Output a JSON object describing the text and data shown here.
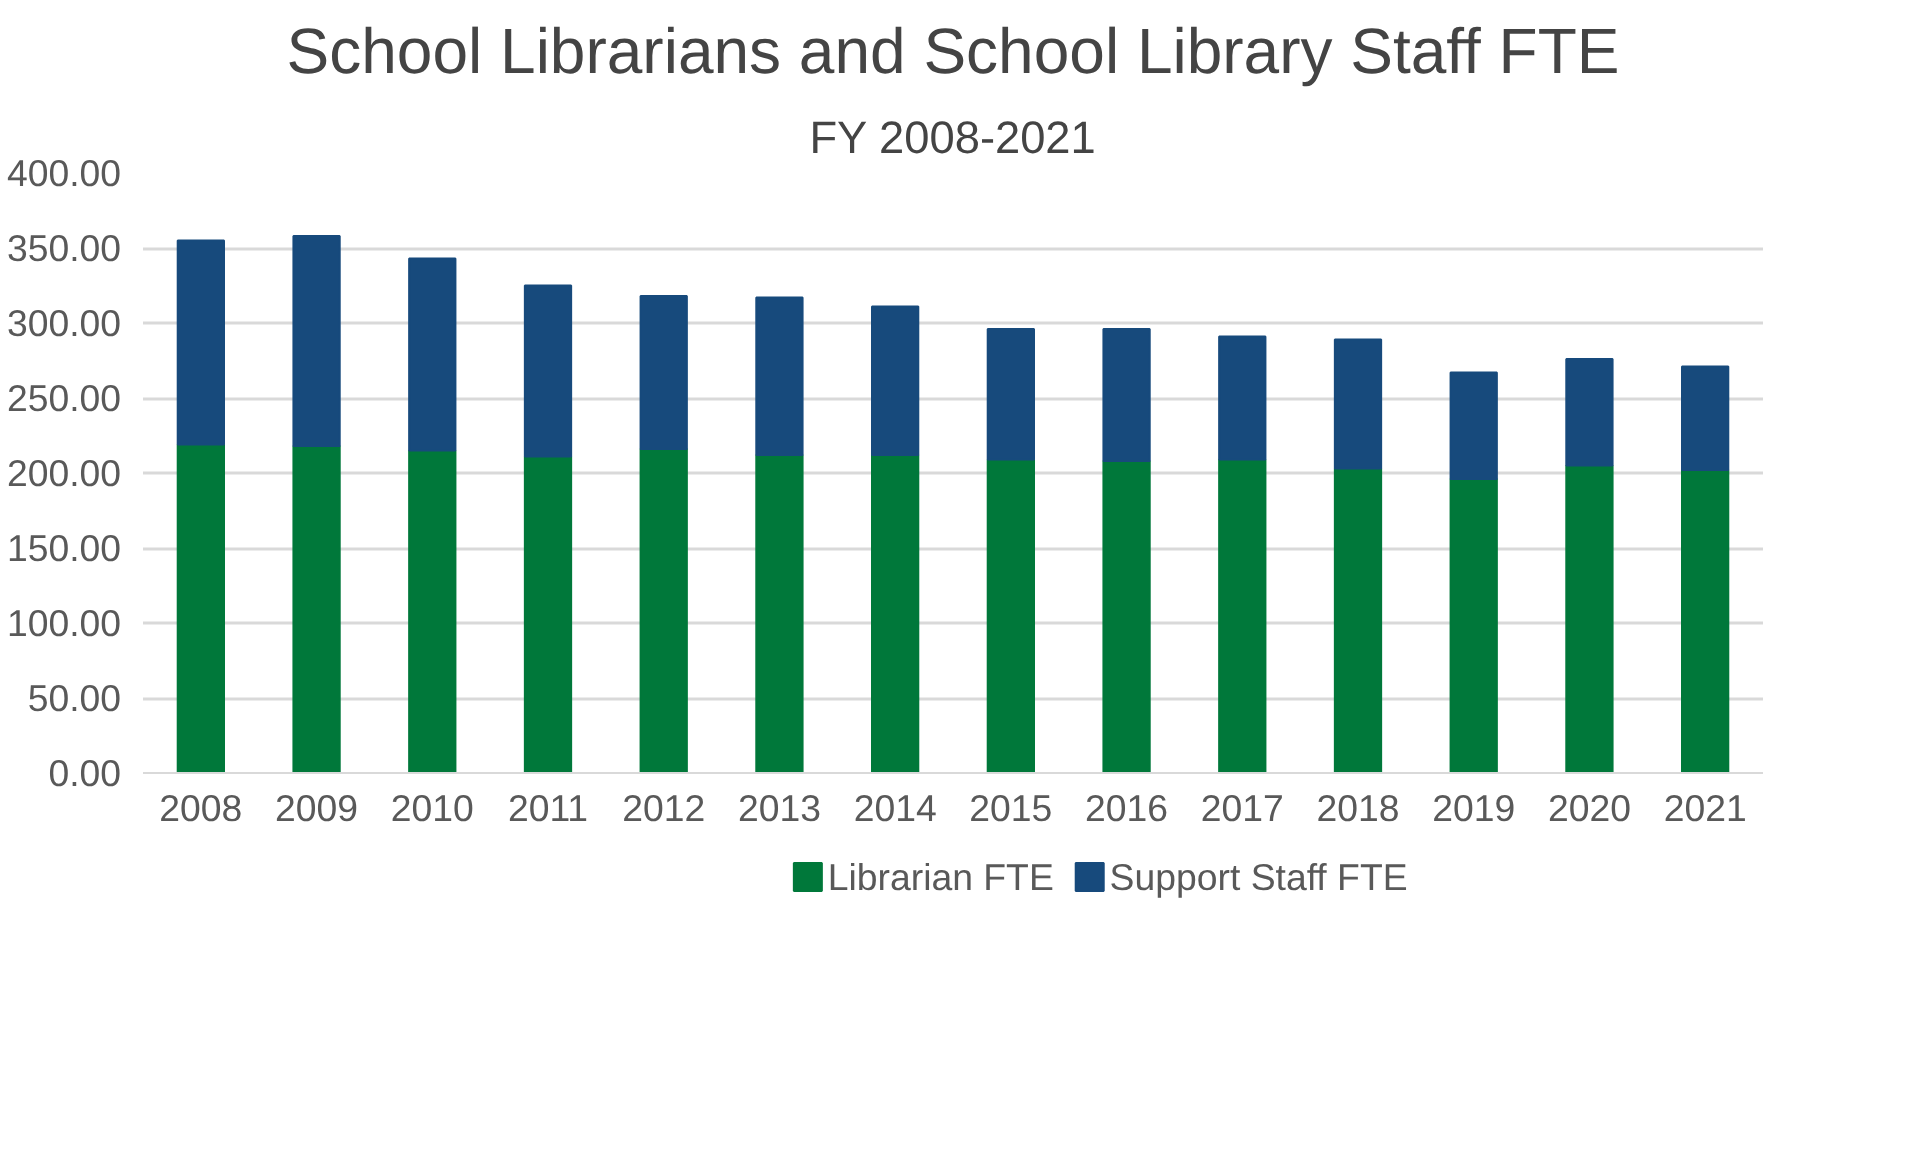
{
  "chart_data": {
    "type": "bar",
    "title": "School Librarians and School Library Staff FTE",
    "subtitle": "FY 2008-2021",
    "categories": [
      "2008",
      "2009",
      "2010",
      "2011",
      "2012",
      "2013",
      "2014",
      "2015",
      "2016",
      "2017",
      "2018",
      "2019",
      "2020",
      "2021"
    ],
    "stacked": true,
    "series": [
      {
        "name": "Librarian FTE",
        "color": "#00783a",
        "values": [
          219,
          218,
          215,
          211,
          216,
          212,
          212,
          209,
          208,
          209,
          203,
          196,
          205,
          202
        ]
      },
      {
        "name": "Support Staff FTE",
        "color": "#174a7c",
        "values": [
          136,
          140,
          128,
          114,
          102,
          105,
          99,
          87,
          88,
          82,
          86,
          71,
          71,
          69
        ]
      }
    ],
    "ylim": [
      0,
      400
    ],
    "yticks": [
      {
        "value": 0,
        "label": "0.00"
      },
      {
        "value": 50,
        "label": "50.00"
      },
      {
        "value": 100,
        "label": "100.00"
      },
      {
        "value": 150,
        "label": "150.00"
      },
      {
        "value": 200,
        "label": "200.00"
      },
      {
        "value": 250,
        "label": "250.00"
      },
      {
        "value": 300,
        "label": "300.00"
      },
      {
        "value": 350,
        "label": "350.00"
      },
      {
        "value": 400,
        "label": "400.00"
      }
    ],
    "grid": "y",
    "legend": "bottom"
  }
}
